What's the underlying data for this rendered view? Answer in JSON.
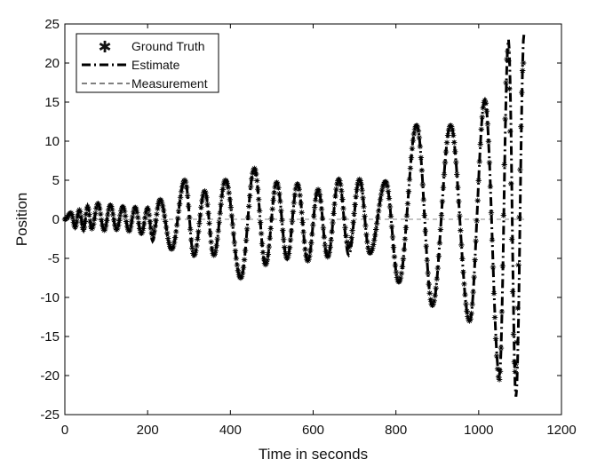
{
  "chart_data": {
    "type": "line",
    "title": "",
    "xlabel": "Time in seconds",
    "ylabel": "Position",
    "xlim": [
      0,
      1200
    ],
    "ylim": [
      -25,
      25
    ],
    "x_ticks": [
      0,
      200,
      400,
      600,
      800,
      1000,
      1200
    ],
    "y_ticks": [
      25,
      20,
      15,
      10,
      5,
      0,
      -5,
      -10,
      -15,
      -20,
      -25
    ],
    "grid": false,
    "legend_position": "top-left",
    "legend": [
      "Ground Truth",
      "Estimate",
      "Measurement"
    ],
    "series": [
      {
        "name": "Ground Truth",
        "style": "asterisk markers",
        "color": "#000000",
        "description": "oscillating position with growing amplitude",
        "extrema": [
          {
            "t": 0,
            "v": 0
          },
          {
            "t": 15,
            "v": 0.8
          },
          {
            "t": 25,
            "v": -1.0
          },
          {
            "t": 35,
            "v": 1.2
          },
          {
            "t": 45,
            "v": -1.3
          },
          {
            "t": 55,
            "v": 1.6
          },
          {
            "t": 65,
            "v": -1.2
          },
          {
            "t": 80,
            "v": 2.0
          },
          {
            "t": 95,
            "v": -1.4
          },
          {
            "t": 110,
            "v": 1.8
          },
          {
            "t": 125,
            "v": -1.3
          },
          {
            "t": 140,
            "v": 1.6
          },
          {
            "t": 155,
            "v": -1.5
          },
          {
            "t": 170,
            "v": 1.5
          },
          {
            "t": 185,
            "v": -1.8
          },
          {
            "t": 200,
            "v": 1.4
          },
          {
            "t": 212,
            "v": -2.0
          },
          {
            "t": 230,
            "v": 2.5
          },
          {
            "t": 258,
            "v": -3.8
          },
          {
            "t": 290,
            "v": 5.0
          },
          {
            "t": 312,
            "v": -4.6
          },
          {
            "t": 338,
            "v": 3.6
          },
          {
            "t": 360,
            "v": -4.6
          },
          {
            "t": 388,
            "v": 5.0
          },
          {
            "t": 425,
            "v": -7.5
          },
          {
            "t": 458,
            "v": 6.5
          },
          {
            "t": 485,
            "v": -5.8
          },
          {
            "t": 512,
            "v": 4.7
          },
          {
            "t": 537,
            "v": -5.0
          },
          {
            "t": 562,
            "v": 4.5
          },
          {
            "t": 587,
            "v": -5.3
          },
          {
            "t": 612,
            "v": 3.8
          },
          {
            "t": 635,
            "v": -4.8
          },
          {
            "t": 662,
            "v": 5.1
          },
          {
            "t": 686,
            "v": -3.6
          },
          {
            "t": 712,
            "v": 5.1
          },
          {
            "t": 737,
            "v": -4.3
          },
          {
            "t": 775,
            "v": 4.8
          },
          {
            "t": 807,
            "v": -8.0
          },
          {
            "t": 850,
            "v": 12.0
          },
          {
            "t": 888,
            "v": -11.0
          },
          {
            "t": 932,
            "v": 12.0
          },
          {
            "t": 978,
            "v": -13.0
          },
          {
            "t": 1015,
            "v": 15.2
          },
          {
            "t": 1050,
            "v": -20.5
          },
          {
            "t": 1070,
            "v": 21.5
          },
          {
            "t": 1088,
            "v": -19.5
          },
          {
            "t": 1108,
            "v": 20.0
          }
        ]
      },
      {
        "name": "Estimate",
        "style": "thick dash-dot line",
        "color": "#000000",
        "extrema": [
          {
            "t": 0,
            "v": 0
          },
          {
            "t": 15,
            "v": 0.9
          },
          {
            "t": 25,
            "v": -1.1
          },
          {
            "t": 35,
            "v": 1.3
          },
          {
            "t": 45,
            "v": -1.4
          },
          {
            "t": 55,
            "v": 1.7
          },
          {
            "t": 65,
            "v": -1.3
          },
          {
            "t": 80,
            "v": 2.1
          },
          {
            "t": 95,
            "v": -1.5
          },
          {
            "t": 110,
            "v": 1.9
          },
          {
            "t": 125,
            "v": -1.4
          },
          {
            "t": 140,
            "v": 1.7
          },
          {
            "t": 155,
            "v": -1.6
          },
          {
            "t": 170,
            "v": 1.6
          },
          {
            "t": 185,
            "v": -1.9
          },
          {
            "t": 200,
            "v": 1.5
          },
          {
            "t": 212,
            "v": -2.8
          },
          {
            "t": 230,
            "v": 2.6
          },
          {
            "t": 258,
            "v": -3.9
          },
          {
            "t": 290,
            "v": 5.1
          },
          {
            "t": 312,
            "v": -4.7
          },
          {
            "t": 338,
            "v": 3.7
          },
          {
            "t": 360,
            "v": -4.7
          },
          {
            "t": 388,
            "v": 5.1
          },
          {
            "t": 425,
            "v": -7.6
          },
          {
            "t": 458,
            "v": 6.6
          },
          {
            "t": 485,
            "v": -5.9
          },
          {
            "t": 512,
            "v": 4.8
          },
          {
            "t": 537,
            "v": -5.1
          },
          {
            "t": 562,
            "v": 4.6
          },
          {
            "t": 587,
            "v": -5.4
          },
          {
            "t": 612,
            "v": 3.9
          },
          {
            "t": 635,
            "v": -4.9
          },
          {
            "t": 662,
            "v": 5.2
          },
          {
            "t": 686,
            "v": -4.6
          },
          {
            "t": 712,
            "v": 5.2
          },
          {
            "t": 737,
            "v": -4.4
          },
          {
            "t": 775,
            "v": 4.9
          },
          {
            "t": 807,
            "v": -8.1
          },
          {
            "t": 850,
            "v": 12.1
          },
          {
            "t": 888,
            "v": -11.1
          },
          {
            "t": 932,
            "v": 12.1
          },
          {
            "t": 978,
            "v": -13.1
          },
          {
            "t": 1015,
            "v": 15.3
          },
          {
            "t": 1050,
            "v": -20.0
          },
          {
            "t": 1072,
            "v": 23.0
          },
          {
            "t": 1090,
            "v": -22.7
          },
          {
            "t": 1110,
            "v": 24.0
          }
        ]
      },
      {
        "name": "Measurement",
        "style": "thin dashed line",
        "color": "#888888",
        "values_description": "near zero throughout",
        "x": [
          0,
          1110
        ],
        "y": [
          0,
          0
        ]
      }
    ]
  }
}
